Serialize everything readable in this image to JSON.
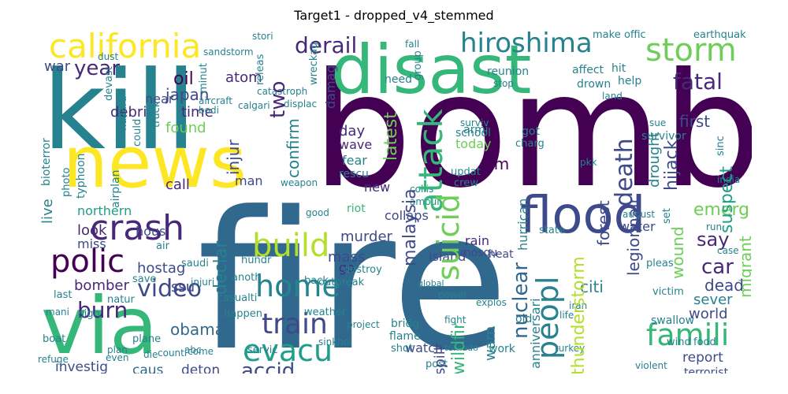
{
  "title": "Target1 - dropped_v4_stemmed",
  "palette": {
    "dark_purple": "#440154",
    "purple": "#482878",
    "indigo": "#3e4a89",
    "blue": "#31688e",
    "teal": "#26828e",
    "green_teal": "#1f9e89",
    "green": "#35b779",
    "light_green": "#6ece58",
    "lime": "#b5de2b",
    "yellow": "#fde725"
  },
  "words": [
    {
      "text": "fire",
      "color": "#31688e"
    },
    {
      "text": "bomb",
      "color": "#440154"
    },
    {
      "text": "kill",
      "color": "#26828e"
    },
    {
      "text": "disast",
      "color": "#35b779"
    },
    {
      "text": "news",
      "color": "#fde725"
    },
    {
      "text": "via",
      "color": "#35b779"
    },
    {
      "text": "california",
      "color": "#fde725"
    },
    {
      "text": "hiroshima",
      "color": "#26828e"
    },
    {
      "text": "storm",
      "color": "#6ece58"
    },
    {
      "text": "flood",
      "color": "#3e4a89"
    },
    {
      "text": "crash",
      "color": "#482878"
    },
    {
      "text": "build",
      "color": "#b5de2b"
    },
    {
      "text": "polic",
      "color": "#440154"
    },
    {
      "text": "home",
      "color": "#26828e"
    },
    {
      "text": "attack",
      "color": "#35b779"
    },
    {
      "text": "famili",
      "color": "#35b779"
    },
    {
      "text": "train",
      "color": "#3e4a89"
    },
    {
      "text": "evacu",
      "color": "#1f9e89"
    },
    {
      "text": "peopl",
      "color": "#26828e"
    },
    {
      "text": "suicid",
      "color": "#6ece58"
    },
    {
      "text": "derail",
      "color": "#482878"
    },
    {
      "text": "year",
      "color": "#482878"
    },
    {
      "text": "fatal",
      "color": "#482878"
    },
    {
      "text": "oil",
      "color": "#440154"
    },
    {
      "text": "japan",
      "color": "#3e4a89"
    },
    {
      "text": "atom",
      "color": "#482878"
    },
    {
      "text": "two",
      "color": "#482878"
    },
    {
      "text": "video",
      "color": "#3e4a89"
    },
    {
      "text": "burn",
      "color": "#482878"
    },
    {
      "text": "accid",
      "color": "#3e4a89"
    },
    {
      "text": "nuclear",
      "color": "#31688e"
    },
    {
      "text": "death",
      "color": "#3e4a89"
    },
    {
      "text": "emerg",
      "color": "#6ece58"
    },
    {
      "text": "car",
      "color": "#482878"
    },
    {
      "text": "say",
      "color": "#482878"
    },
    {
      "text": "dead",
      "color": "#3e4a89"
    },
    {
      "text": "citi",
      "color": "#26828e"
    },
    {
      "text": "first",
      "color": "#3e4a89"
    },
    {
      "text": "hijack",
      "color": "#3e4a89"
    },
    {
      "text": "suspect",
      "color": "#1f9e89"
    },
    {
      "text": "wildfir",
      "color": "#35b779"
    },
    {
      "text": "malaysia",
      "color": "#3e4a89"
    },
    {
      "text": "thunderstorm",
      "color": "#b5de2b"
    },
    {
      "text": "legionnair",
      "color": "#3e4a89"
    },
    {
      "text": "wound",
      "color": "#6ece58"
    },
    {
      "text": "migrant",
      "color": "#6ece58"
    },
    {
      "text": "sever",
      "color": "#26828e"
    },
    {
      "text": "world",
      "color": "#3e4a89"
    },
    {
      "text": "report",
      "color": "#3e4a89"
    },
    {
      "text": "terrorist",
      "color": "#3e4a89"
    },
    {
      "text": "hostag",
      "color": "#3e4a89"
    },
    {
      "text": "issu",
      "color": "#3e4a89"
    },
    {
      "text": "obama",
      "color": "#31688e"
    },
    {
      "text": "deton",
      "color": "#3e4a89"
    },
    {
      "text": "caus",
      "color": "#31688e"
    },
    {
      "text": "investig",
      "color": "#3e4a89"
    },
    {
      "text": "bomber",
      "color": "#482878"
    },
    {
      "text": "miss",
      "color": "#3e4a89"
    },
    {
      "text": "look",
      "color": "#482878"
    },
    {
      "text": "northern",
      "color": "#1f9e89"
    },
    {
      "text": "live",
      "color": "#26828e"
    },
    {
      "text": "call",
      "color": "#482878"
    },
    {
      "text": "found",
      "color": "#6ece58"
    },
    {
      "text": "time",
      "color": "#482878"
    },
    {
      "text": "debri",
      "color": "#482878"
    },
    {
      "text": "near",
      "color": "#3e4a89"
    },
    {
      "text": "war",
      "color": "#3e4a89"
    },
    {
      "text": "injur",
      "color": "#3e4a89"
    },
    {
      "text": "confirm",
      "color": "#26828e"
    },
    {
      "text": "day",
      "color": "#482878"
    },
    {
      "text": "wave",
      "color": "#482878"
    },
    {
      "text": "fear",
      "color": "#26828e"
    },
    {
      "text": "today",
      "color": "#6ece58"
    },
    {
      "text": "pm",
      "color": "#440154"
    },
    {
      "text": "new",
      "color": "#482878"
    },
    {
      "text": "man",
      "color": "#3e4a89"
    },
    {
      "text": "murder",
      "color": "#3e4a89"
    },
    {
      "text": "mass",
      "color": "#3e4a89"
    },
    {
      "text": "collaps",
      "color": "#3e4a89"
    },
    {
      "text": "latest",
      "color": "#6ece58"
    },
    {
      "text": "declar",
      "color": "#26828e"
    },
    {
      "text": "hous",
      "color": "#3e4a89"
    },
    {
      "text": "forest",
      "color": "#3e4a89"
    },
    {
      "text": "drought",
      "color": "#26828e"
    },
    {
      "text": "water",
      "color": "#3e4a89"
    },
    {
      "text": "island",
      "color": "#3e4a89"
    },
    {
      "text": "watch",
      "color": "#3e4a89"
    },
    {
      "text": "spill",
      "color": "#3e4a89"
    },
    {
      "text": "warn",
      "color": "#26828e"
    },
    {
      "text": "anniversari",
      "color": "#26828e"
    },
    {
      "text": "rain",
      "color": "#482878"
    },
    {
      "text": "mosqu",
      "color": "#3e4a89"
    },
    {
      "text": "heat",
      "color": "#3e4a89"
    },
    {
      "text": "go",
      "color": "#482878"
    },
    {
      "text": "riot",
      "color": "#35b779"
    },
    {
      "text": "hurrican",
      "color": "#26828e"
    },
    {
      "text": "damag",
      "color": "#3e4a89"
    },
    {
      "text": "bioterror",
      "color": "#26828e"
    },
    {
      "text": "typhoon",
      "color": "#26828e"
    },
    {
      "text": "airplan",
      "color": "#26828e"
    },
    {
      "text": "photo",
      "color": "#26828e"
    },
    {
      "text": "hazard",
      "color": "#26828e"
    },
    {
      "text": "could",
      "color": "#26828e"
    },
    {
      "text": "truck",
      "color": "#26828e"
    },
    {
      "text": "devast",
      "color": "#26828e"
    },
    {
      "text": "minut",
      "color": "#26828e"
    },
    {
      "text": "releas",
      "color": "#26828e"
    },
    {
      "text": "wreckag",
      "color": "#26828e"
    },
    {
      "text": "make",
      "color": "#26828e"
    },
    {
      "text": "offic",
      "color": "#26828e"
    },
    {
      "text": "earthquak",
      "color": "#26828e"
    },
    {
      "text": "affect",
      "color": "#26828e"
    },
    {
      "text": "hit",
      "color": "#26828e"
    },
    {
      "text": "help",
      "color": "#26828e"
    },
    {
      "text": "drown",
      "color": "#26828e"
    },
    {
      "text": "reunion",
      "color": "#26828e"
    },
    {
      "text": "need",
      "color": "#26828e"
    },
    {
      "text": "group",
      "color": "#26828e"
    },
    {
      "text": "stop",
      "color": "#26828e"
    },
    {
      "text": "survivor",
      "color": "#26828e"
    },
    {
      "text": "sue",
      "color": "#26828e"
    },
    {
      "text": "sinc",
      "color": "#26828e"
    },
    {
      "text": "armi",
      "color": "#26828e"
    },
    {
      "text": "school",
      "color": "#26828e"
    },
    {
      "text": "got",
      "color": "#26828e"
    },
    {
      "text": "charg",
      "color": "#26828e"
    },
    {
      "text": "updat",
      "color": "#26828e"
    },
    {
      "text": "crew",
      "color": "#26828e"
    },
    {
      "text": "rescu",
      "color": "#26828e"
    },
    {
      "text": "ambul",
      "color": "#26828e"
    },
    {
      "text": "collis",
      "color": "#26828e"
    },
    {
      "text": "set",
      "color": "#26828e"
    },
    {
      "text": "state",
      "color": "#26828e"
    },
    {
      "text": "run",
      "color": "#26828e"
    },
    {
      "text": "pleas",
      "color": "#26828e"
    },
    {
      "text": "case",
      "color": "#26828e"
    },
    {
      "text": "victim",
      "color": "#26828e"
    },
    {
      "text": "swallow",
      "color": "#26828e"
    },
    {
      "text": "wind",
      "color": "#26828e"
    },
    {
      "text": "food",
      "color": "#26828e"
    },
    {
      "text": "violent",
      "color": "#26828e"
    },
    {
      "text": "offici",
      "color": "#26828e"
    },
    {
      "text": "old",
      "color": "#26828e"
    },
    {
      "text": "work",
      "color": "#26828e"
    },
    {
      "text": "post",
      "color": "#26828e"
    },
    {
      "text": "massacr",
      "color": "#26828e"
    },
    {
      "text": "rescuer",
      "color": "#26828e"
    },
    {
      "text": "flame",
      "color": "#26828e"
    },
    {
      "text": "bridg",
      "color": "#26828e"
    },
    {
      "text": "shot",
      "color": "#26828e"
    },
    {
      "text": "structur",
      "color": "#26828e"
    },
    {
      "text": "servic",
      "color": "#26828e"
    },
    {
      "text": "sinkhol",
      "color": "#26828e"
    },
    {
      "text": "weather",
      "color": "#26828e"
    },
    {
      "text": "project",
      "color": "#26828e"
    },
    {
      "text": "outbreak",
      "color": "#26828e"
    },
    {
      "text": "back",
      "color": "#26828e"
    },
    {
      "text": "destroy",
      "color": "#26828e"
    },
    {
      "text": "hundr",
      "color": "#26828e"
    },
    {
      "text": "anoth",
      "color": "#26828e"
    },
    {
      "text": "saudi",
      "color": "#26828e"
    },
    {
      "text": "injuri",
      "color": "#26828e"
    },
    {
      "text": "save",
      "color": "#26828e"
    },
    {
      "text": "casualti",
      "color": "#26828e"
    },
    {
      "text": "happen",
      "color": "#26828e"
    },
    {
      "text": "natur",
      "color": "#26828e"
    },
    {
      "text": "plane",
      "color": "#26828e"
    },
    {
      "text": "come",
      "color": "#26828e"
    },
    {
      "text": "counti",
      "color": "#26828e"
    },
    {
      "text": "die",
      "color": "#26828e"
    },
    {
      "text": "abc",
      "color": "#26828e"
    },
    {
      "text": "plan",
      "color": "#26828e"
    },
    {
      "text": "boat",
      "color": "#26828e"
    },
    {
      "text": "sign",
      "color": "#26828e"
    },
    {
      "text": "last",
      "color": "#26828e"
    },
    {
      "text": "mani",
      "color": "#26828e"
    },
    {
      "text": "refuge",
      "color": "#26828e"
    },
    {
      "text": "even",
      "color": "#26828e"
    },
    {
      "text": "air",
      "color": "#26828e"
    },
    {
      "text": "weapon",
      "color": "#26828e"
    },
    {
      "text": "aircraft",
      "color": "#26828e"
    },
    {
      "text": "bodi",
      "color": "#26828e"
    },
    {
      "text": "calgari",
      "color": "#26828e"
    },
    {
      "text": "catastroph",
      "color": "#26828e"
    },
    {
      "text": "displac",
      "color": "#26828e"
    },
    {
      "text": "sandstorm",
      "color": "#26828e"
    },
    {
      "text": "dust",
      "color": "#26828e"
    },
    {
      "text": "stori",
      "color": "#26828e"
    },
    {
      "text": "fall",
      "color": "#26828e"
    },
    {
      "text": "surviv",
      "color": "#26828e"
    },
    {
      "text": "pkk",
      "color": "#26828e"
    },
    {
      "text": "august",
      "color": "#26828e"
    },
    {
      "text": "india",
      "color": "#26828e"
    },
    {
      "text": "iran",
      "color": "#26828e"
    },
    {
      "text": "life",
      "color": "#26828e"
    },
    {
      "text": "fight",
      "color": "#26828e"
    },
    {
      "text": "explos",
      "color": "#26828e"
    },
    {
      "text": "power",
      "color": "#26828e"
    },
    {
      "text": "good",
      "color": "#26828e"
    },
    {
      "text": "land",
      "color": "#26828e"
    },
    {
      "text": "global",
      "color": "#26828e"
    },
    {
      "text": "turkey",
      "color": "#26828e"
    },
    {
      "text": "tornado",
      "color": "#26828e"
    },
    {
      "text": "firefight",
      "color": "#26828e"
    },
    {
      "text": "transport",
      "color": "#26828e"
    },
    {
      "text": "failur",
      "color": "#26828e"
    },
    {
      "text": "continu",
      "color": "#26828e"
    }
  ]
}
